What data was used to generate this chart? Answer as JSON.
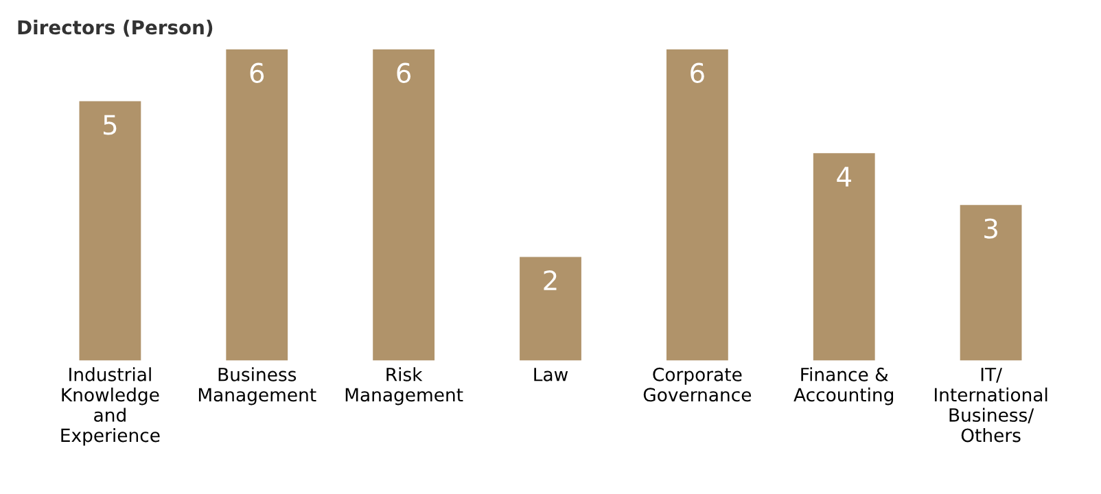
{
  "chart_data": {
    "type": "bar",
    "title": "Directors (Person)",
    "categories": [
      "Industrial\nKnowledge\nand\nExperience",
      "Business\nManagement",
      "Risk\nManagement",
      "Law",
      "Corporate\nGovernance",
      "Finance &\nAccounting",
      "IT/\nInternational\nBusiness/\nOthers"
    ],
    "values": [
      5,
      6,
      6,
      2,
      6,
      4,
      3
    ],
    "color": "#b0936a",
    "ylim": [
      0,
      6
    ],
    "data_labels": true,
    "grid": false,
    "tick_labels": "x"
  }
}
